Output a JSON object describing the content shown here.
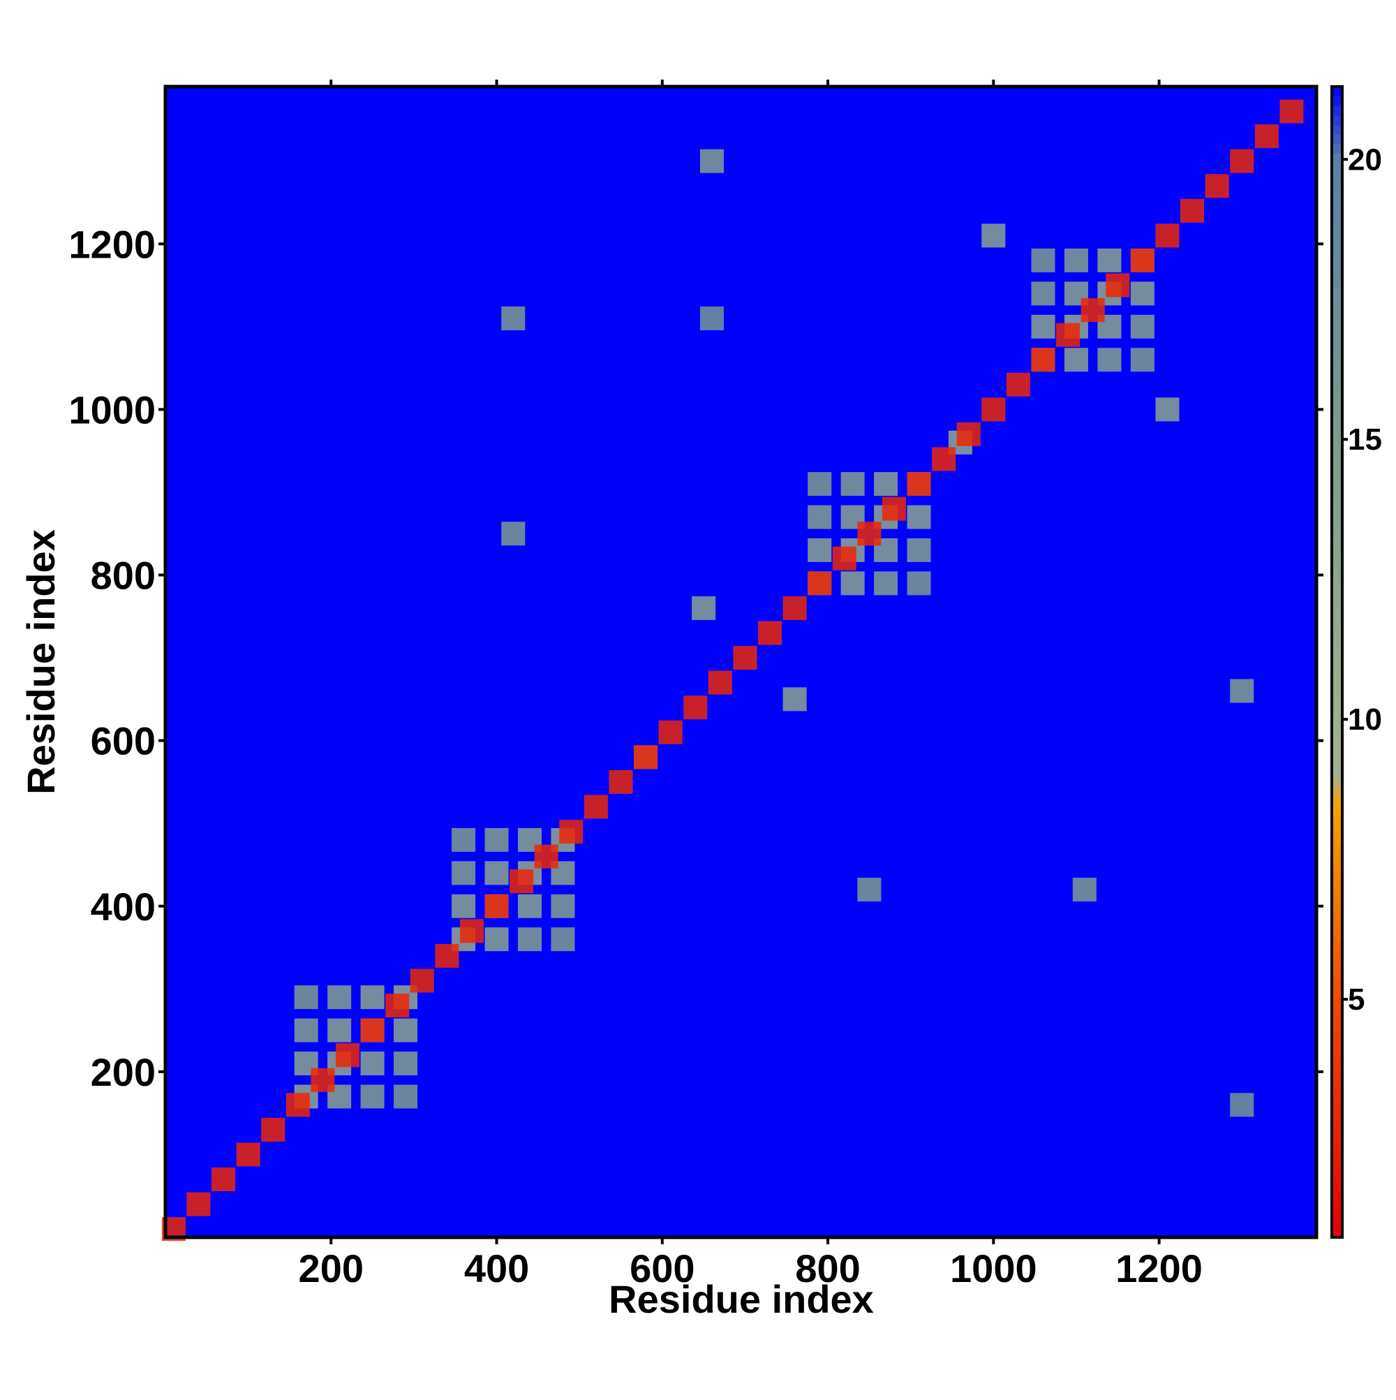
{
  "chart_data": {
    "type": "heatmap",
    "xlabel": "Residue index",
    "ylabel": "Residue index",
    "xlim": [
      0,
      1390
    ],
    "ylim": [
      0,
      1390
    ],
    "xticks": [
      200,
      400,
      600,
      800,
      1000,
      1200
    ],
    "yticks": [
      200,
      400,
      600,
      800,
      1000,
      1200
    ],
    "clim": [
      0.75,
      21.3
    ],
    "cticks": [
      5,
      10,
      15,
      20
    ],
    "background": "#0000ff",
    "colorscale": [
      [
        0.75,
        "#e8000b"
      ],
      [
        5,
        "#f04a00"
      ],
      [
        8.5,
        "#f5a300"
      ],
      [
        9,
        "#a3b38f"
      ],
      [
        15,
        "#7d9c8c"
      ],
      [
        20,
        "#5a80a8"
      ],
      [
        21.3,
        "#0000ff"
      ]
    ],
    "x": [
      170,
      170,
      170,
      170,
      210,
      210,
      210,
      210,
      250,
      250,
      250,
      250,
      290,
      290,
      290,
      290,
      360,
      360,
      360,
      360,
      400,
      400,
      400,
      400,
      440,
      440,
      440,
      440,
      480,
      480,
      480,
      480,
      790,
      790,
      790,
      790,
      830,
      830,
      830,
      830,
      870,
      870,
      870,
      870,
      910,
      910,
      910,
      910,
      1060,
      1060,
      1060,
      1060,
      1100,
      1100,
      1100,
      1100,
      1140,
      1140,
      1140,
      1140,
      1180,
      1180,
      1180,
      1180,
      660,
      1300,
      650,
      760,
      1000,
      1210,
      420,
      1110,
      850,
      420,
      1300,
      660,
      580,
      960,
      10,
      40,
      70,
      100,
      130,
      160,
      190,
      220,
      250,
      280,
      310,
      340,
      370,
      400,
      430,
      460,
      490,
      520,
      550,
      580,
      610,
      640,
      670,
      700,
      730,
      760,
      790,
      820,
      850,
      880,
      910,
      940,
      970,
      1000,
      1030,
      1060,
      1090,
      1120,
      1150,
      1180,
      1210,
      1240,
      1270,
      1300,
      1330,
      1360
    ],
    "y": [
      170,
      210,
      250,
      290,
      170,
      210,
      250,
      290,
      170,
      210,
      250,
      290,
      170,
      210,
      250,
      290,
      360,
      400,
      440,
      480,
      360,
      400,
      440,
      480,
      360,
      400,
      440,
      480,
      360,
      400,
      440,
      480,
      790,
      830,
      870,
      910,
      790,
      830,
      870,
      910,
      790,
      830,
      870,
      910,
      790,
      830,
      870,
      910,
      1060,
      1100,
      1140,
      1180,
      1060,
      1100,
      1140,
      1180,
      1060,
      1100,
      1140,
      1180,
      1060,
      1100,
      1140,
      1180,
      1300,
      660,
      760,
      650,
      1210,
      1000,
      1110,
      420,
      420,
      850,
      160,
      1110,
      580,
      960,
      10,
      40,
      70,
      100,
      130,
      160,
      190,
      220,
      250,
      280,
      310,
      340,
      370,
      400,
      430,
      460,
      490,
      520,
      550,
      580,
      610,
      640,
      670,
      700,
      730,
      760,
      790,
      820,
      850,
      880,
      910,
      940,
      970,
      1000,
      1030,
      1060,
      1090,
      1120,
      1150,
      1180,
      1210,
      1240,
      1270,
      1300,
      1330,
      1360
    ],
    "values": [
      12,
      13,
      14,
      15,
      13,
      12,
      13,
      14,
      14,
      13,
      12,
      13,
      15,
      14,
      13,
      12,
      12,
      13,
      14,
      15,
      13,
      12,
      13,
      14,
      14,
      13,
      12,
      13,
      15,
      14,
      13,
      12,
      12,
      13,
      14,
      15,
      13,
      12,
      13,
      14,
      14,
      13,
      12,
      13,
      15,
      14,
      13,
      12,
      12,
      13,
      14,
      15,
      13,
      12,
      13,
      14,
      14,
      13,
      12,
      13,
      15,
      14,
      13,
      12,
      14,
      14,
      13,
      13,
      13,
      13,
      15,
      15,
      15,
      15,
      16,
      16,
      12,
      12,
      3,
      3,
      3,
      3,
      3,
      3,
      3,
      3,
      3,
      3,
      3,
      3,
      3,
      3,
      3,
      3,
      3,
      3,
      3,
      3,
      3,
      3,
      3,
      3,
      3,
      3,
      3,
      3,
      3,
      3,
      3,
      3,
      3,
      3,
      3,
      3,
      3,
      3,
      3,
      3,
      3,
      3,
      3,
      3,
      3,
      3
    ]
  }
}
